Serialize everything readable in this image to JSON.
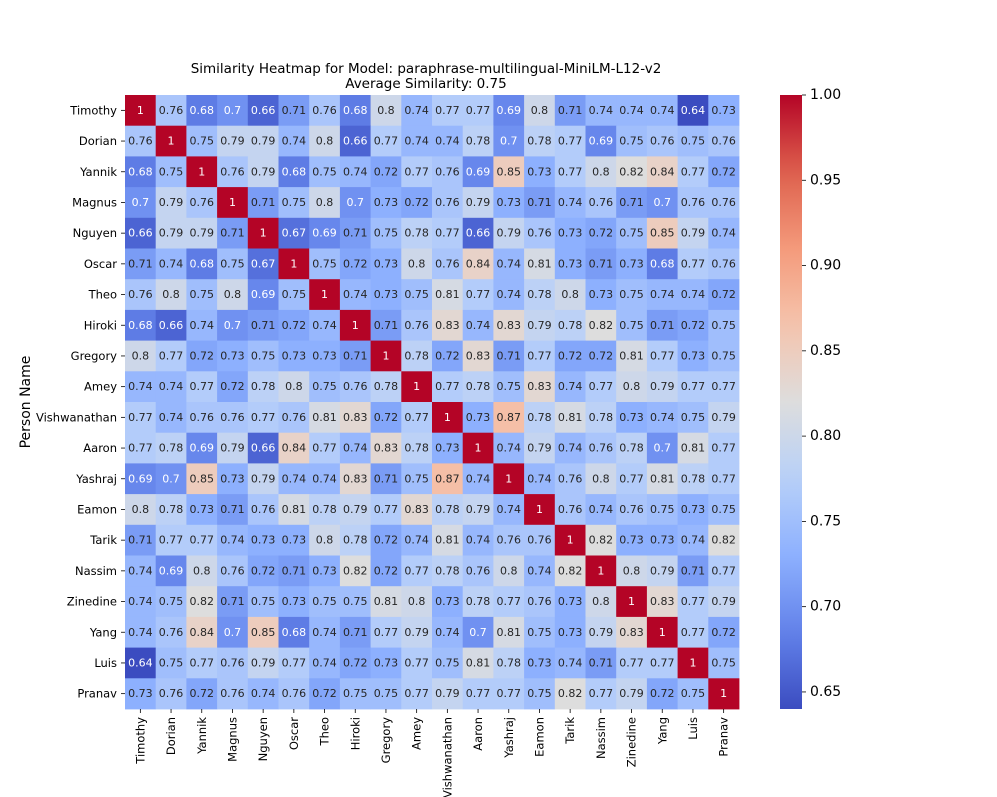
{
  "chart_data": {
    "type": "heatmap",
    "title": "Similarity Heatmap for Model: paraphrase-multilingual-MiniLM-L12-v2",
    "subtitle": "Average Similarity: 0.75",
    "ylabel": "Person Name",
    "xlabel": "",
    "colormap": "coolwarm",
    "vmin": 0.64,
    "vmax": 1.0,
    "colorbar_ticks": [
      "0.65",
      "0.70",
      "0.75",
      "0.80",
      "0.85",
      "0.90",
      "0.95",
      "1.00"
    ],
    "labels": [
      "Timothy",
      "Dorian",
      "Yannik",
      "Magnus",
      "Nguyen",
      "Oscar",
      "Theo",
      "Hiroki",
      "Gregory",
      "Amey",
      "Vishwanathan",
      "Aaron",
      "Yashraj",
      "Eamon",
      "Tarik",
      "Nassim",
      "Zinedine",
      "Yang",
      "Luis",
      "Pranav"
    ],
    "matrix": [
      [
        1,
        0.76,
        0.68,
        0.7,
        0.66,
        0.71,
        0.76,
        0.68,
        0.8,
        0.74,
        0.77,
        0.77,
        0.69,
        0.8,
        0.71,
        0.74,
        0.74,
        0.74,
        0.64,
        0.73
      ],
      [
        0.76,
        1,
        0.75,
        0.79,
        0.79,
        0.74,
        0.8,
        0.66,
        0.77,
        0.74,
        0.74,
        0.78,
        0.7,
        0.78,
        0.77,
        0.69,
        0.75,
        0.76,
        0.75,
        0.76
      ],
      [
        0.68,
        0.75,
        1,
        0.76,
        0.79,
        0.68,
        0.75,
        0.74,
        0.72,
        0.77,
        0.76,
        0.69,
        0.85,
        0.73,
        0.77,
        0.8,
        0.82,
        0.84,
        0.77,
        0.72
      ],
      [
        0.7,
        0.79,
        0.76,
        1,
        0.71,
        0.75,
        0.8,
        0.7,
        0.73,
        0.72,
        0.76,
        0.79,
        0.73,
        0.71,
        0.74,
        0.76,
        0.71,
        0.7,
        0.76,
        0.76
      ],
      [
        0.66,
        0.79,
        0.79,
        0.71,
        1,
        0.67,
        0.69,
        0.71,
        0.75,
        0.78,
        0.77,
        0.66,
        0.79,
        0.76,
        0.73,
        0.72,
        0.75,
        0.85,
        0.79,
        0.74
      ],
      [
        0.71,
        0.74,
        0.68,
        0.75,
        0.67,
        1,
        0.75,
        0.72,
        0.73,
        0.8,
        0.76,
        0.84,
        0.74,
        0.81,
        0.73,
        0.71,
        0.73,
        0.68,
        0.77,
        0.76
      ],
      [
        0.76,
        0.8,
        0.75,
        0.8,
        0.69,
        0.75,
        1,
        0.74,
        0.73,
        0.75,
        0.81,
        0.77,
        0.74,
        0.78,
        0.8,
        0.73,
        0.75,
        0.74,
        0.74,
        0.72
      ],
      [
        0.68,
        0.66,
        0.74,
        0.7,
        0.71,
        0.72,
        0.74,
        1,
        0.71,
        0.76,
        0.83,
        0.74,
        0.83,
        0.79,
        0.78,
        0.82,
        0.75,
        0.71,
        0.72,
        0.75
      ],
      [
        0.8,
        0.77,
        0.72,
        0.73,
        0.75,
        0.73,
        0.73,
        0.71,
        1,
        0.78,
        0.72,
        0.83,
        0.71,
        0.77,
        0.72,
        0.72,
        0.81,
        0.77,
        0.73,
        0.75
      ],
      [
        0.74,
        0.74,
        0.77,
        0.72,
        0.78,
        0.8,
        0.75,
        0.76,
        0.78,
        1,
        0.77,
        0.78,
        0.75,
        0.83,
        0.74,
        0.77,
        0.8,
        0.79,
        0.77,
        0.77
      ],
      [
        0.77,
        0.74,
        0.76,
        0.76,
        0.77,
        0.76,
        0.81,
        0.83,
        0.72,
        0.77,
        1,
        0.73,
        0.87,
        0.78,
        0.81,
        0.78,
        0.73,
        0.74,
        0.75,
        0.79
      ],
      [
        0.77,
        0.78,
        0.69,
        0.79,
        0.66,
        0.84,
        0.77,
        0.74,
        0.83,
        0.78,
        0.73,
        1,
        0.74,
        0.79,
        0.74,
        0.76,
        0.78,
        0.7,
        0.81,
        0.77
      ],
      [
        0.69,
        0.7,
        0.85,
        0.73,
        0.79,
        0.74,
        0.74,
        0.83,
        0.71,
        0.75,
        0.87,
        0.74,
        1,
        0.74,
        0.76,
        0.8,
        0.77,
        0.81,
        0.78,
        0.77
      ],
      [
        0.8,
        0.78,
        0.73,
        0.71,
        0.76,
        0.81,
        0.78,
        0.79,
        0.77,
        0.83,
        0.78,
        0.79,
        0.74,
        1,
        0.76,
        0.74,
        0.76,
        0.75,
        0.73,
        0.75
      ],
      [
        0.71,
        0.77,
        0.77,
        0.74,
        0.73,
        0.73,
        0.8,
        0.78,
        0.72,
        0.74,
        0.81,
        0.74,
        0.76,
        0.76,
        1,
        0.82,
        0.73,
        0.73,
        0.74,
        0.82
      ],
      [
        0.74,
        0.69,
        0.8,
        0.76,
        0.72,
        0.71,
        0.73,
        0.82,
        0.72,
        0.77,
        0.78,
        0.76,
        0.8,
        0.74,
        0.82,
        1,
        0.8,
        0.79,
        0.71,
        0.77
      ],
      [
        0.74,
        0.75,
        0.82,
        0.71,
        0.75,
        0.73,
        0.75,
        0.75,
        0.81,
        0.8,
        0.73,
        0.78,
        0.77,
        0.76,
        0.73,
        0.8,
        1,
        0.83,
        0.77,
        0.79
      ],
      [
        0.74,
        0.76,
        0.84,
        0.7,
        0.85,
        0.68,
        0.74,
        0.71,
        0.77,
        0.79,
        0.74,
        0.7,
        0.81,
        0.75,
        0.73,
        0.79,
        0.83,
        1,
        0.77,
        0.72
      ],
      [
        0.64,
        0.75,
        0.77,
        0.76,
        0.79,
        0.77,
        0.74,
        0.72,
        0.73,
        0.77,
        0.75,
        0.81,
        0.78,
        0.73,
        0.74,
        0.71,
        0.77,
        0.77,
        1,
        0.75
      ],
      [
        0.73,
        0.76,
        0.72,
        0.76,
        0.74,
        0.76,
        0.72,
        0.75,
        0.75,
        0.77,
        0.79,
        0.77,
        0.77,
        0.75,
        0.82,
        0.77,
        0.79,
        0.72,
        0.75,
        1
      ]
    ]
  }
}
